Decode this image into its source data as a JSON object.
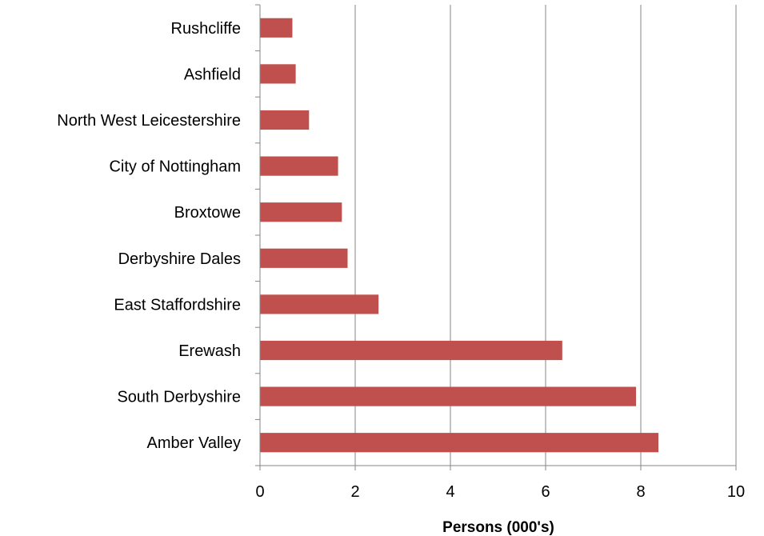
{
  "chart_data": {
    "type": "bar",
    "orientation": "horizontal",
    "categories": [
      "Amber Valley",
      "South Derbyshire",
      "Erewash",
      "East Staffordshire",
      "Derbyshire Dales",
      "Broxtowe",
      "City of Nottingham",
      "North West Leicestershire",
      "Ashfield",
      "Rushcliffe"
    ],
    "values": [
      8.37,
      7.9,
      6.35,
      2.49,
      1.84,
      1.72,
      1.64,
      1.03,
      0.75,
      0.68
    ],
    "title": "",
    "xlabel": "Persons (000's)",
    "ylabel": "",
    "xlim": [
      0,
      10
    ],
    "xticks": [
      "0",
      "2",
      "4",
      "6",
      "8",
      "10"
    ],
    "grid": "vertical",
    "legend": "none",
    "colors": {
      "bar": "#c0504d",
      "grid": "#868686",
      "axis": "#868686"
    }
  }
}
